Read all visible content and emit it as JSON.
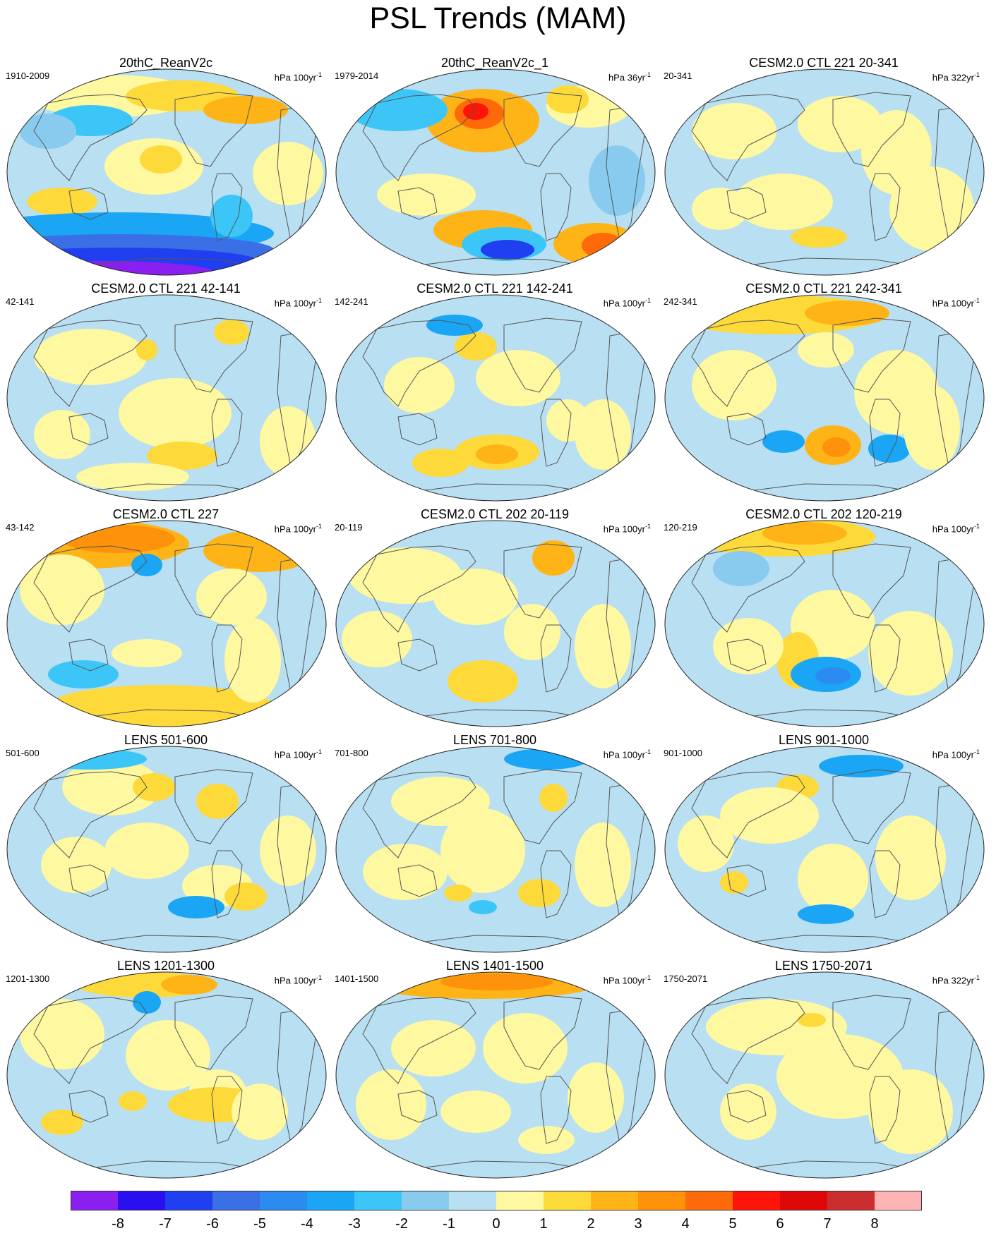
{
  "title": "PSL Trends (MAM)",
  "panels": [
    {
      "title": "20thC_ReanV2c",
      "period": "1910-2009",
      "units": "hPa 100yr",
      "units_exp": "-1"
    },
    {
      "title": "20thC_ReanV2c_1",
      "period": "1979-2014",
      "units": "hPa 36yr",
      "units_exp": "-1"
    },
    {
      "title": "CESM2.0 CTL 221 20-341",
      "period": "20-341",
      "units": "hPa 322yr",
      "units_exp": "-1"
    },
    {
      "title": "CESM2.0 CTL 221 42-141",
      "period": "42-141",
      "units": "hPa 100yr",
      "units_exp": "-1"
    },
    {
      "title": "CESM2.0 CTL 221 142-241",
      "period": "142-241",
      "units": "hPa 100yr",
      "units_exp": "-1"
    },
    {
      "title": "CESM2.0 CTL 221 242-341",
      "period": "242-341",
      "units": "hPa 100yr",
      "units_exp": "-1"
    },
    {
      "title": "CESM2.0 CTL 227",
      "period": "43-142",
      "units": "hPa 100yr",
      "units_exp": "-1"
    },
    {
      "title": "CESM2.0 CTL 202 20-119",
      "period": "20-119",
      "units": "hPa 100yr",
      "units_exp": "-1"
    },
    {
      "title": "CESM2.0 CTL 202 120-219",
      "period": "120-219",
      "units": "hPa 100yr",
      "units_exp": "-1"
    },
    {
      "title": "LENS 501-600",
      "period": "501-600",
      "units": "hPa 100yr",
      "units_exp": "-1"
    },
    {
      "title": "LENS 701-800",
      "period": "701-800",
      "units": "hPa 100yr",
      "units_exp": "-1"
    },
    {
      "title": "LENS 901-1000",
      "period": "901-1000",
      "units": "hPa 100yr",
      "units_exp": "-1"
    },
    {
      "title": "LENS 1201-1300",
      "period": "1201-1300",
      "units": "hPa 100yr",
      "units_exp": "-1"
    },
    {
      "title": "LENS 1401-1500",
      "period": "1401-1500",
      "units": "hPa 100yr",
      "units_exp": "-1"
    },
    {
      "title": "LENS 1750-2071",
      "period": "1750-2071",
      "units": "hPa 322yr",
      "units_exp": "-1"
    }
  ],
  "colorbar": {
    "labels": [
      "-8",
      "-7",
      "-6",
      "-5",
      "-4",
      "-3",
      "-2",
      "-1",
      "0",
      "1",
      "2",
      "3",
      "4",
      "5",
      "6",
      "7",
      "8"
    ],
    "colors": [
      "#8a1ff0",
      "#2a10f0",
      "#1f3ff0",
      "#3a6fe6",
      "#2b8bf0",
      "#1aa6f5",
      "#3cc6f8",
      "#88cbee",
      "#b8dff2",
      "#fef8a0",
      "#fed93a",
      "#feb416",
      "#fe920a",
      "#fe6a0a",
      "#fe1408",
      "#de0808",
      "#ca2e2e",
      "#feb4b4"
    ]
  }
}
